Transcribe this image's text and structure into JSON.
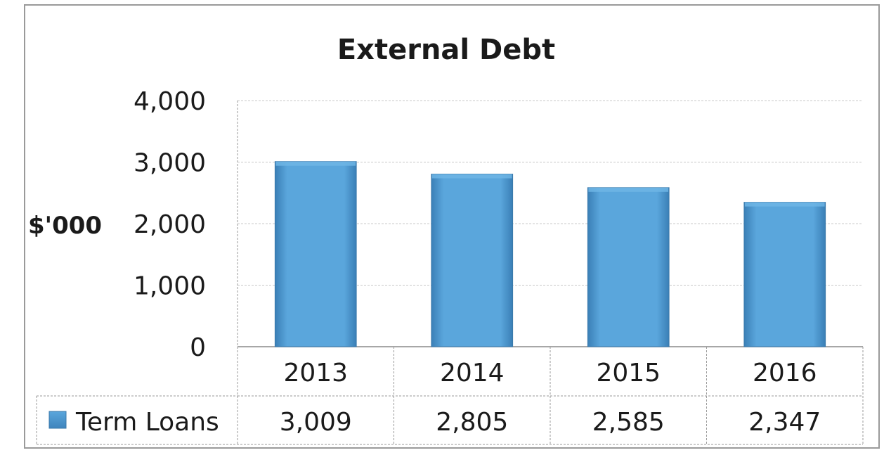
{
  "chart_data": {
    "type": "bar",
    "title": "External Debt",
    "xlabel": "",
    "ylabel": "$'000",
    "ylim": [
      0,
      4000
    ],
    "yticks": [
      "0",
      "1,000",
      "2,000",
      "3,000",
      "4,000"
    ],
    "categories": [
      "2013",
      "2014",
      "2015",
      "2016"
    ],
    "series": [
      {
        "name": "Term Loans",
        "values": [
          3009,
          2805,
          2585,
          2347
        ],
        "labels": [
          "3,009",
          "2,805",
          "2,585",
          "2,347"
        ],
        "color": "#4f97cf"
      }
    ],
    "grid": true,
    "legend": "data-table"
  }
}
